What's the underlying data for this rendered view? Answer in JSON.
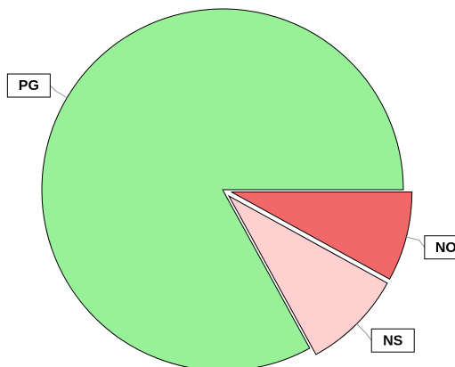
{
  "chart_data": {
    "type": "pie",
    "categories": [
      "NO",
      "NS",
      "PG"
    ],
    "values": [
      8,
      9,
      83
    ],
    "colors": [
      "#f26868",
      "#ffd0d0",
      "#98f098"
    ],
    "exploded": [
      "NO",
      "NS"
    ]
  }
}
